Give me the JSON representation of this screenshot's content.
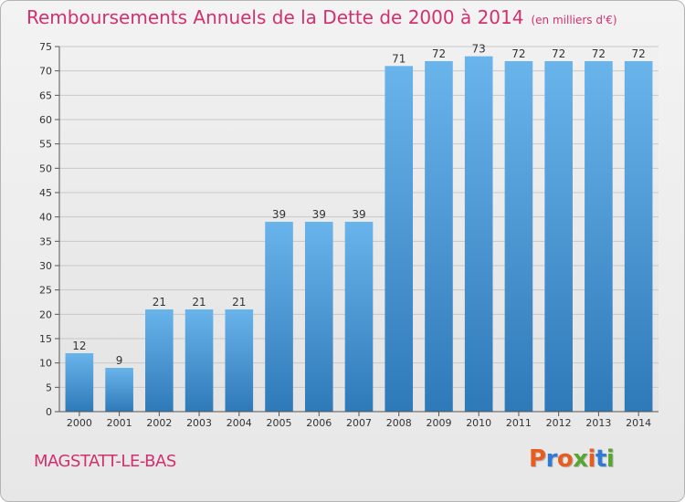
{
  "header": {
    "title": "Remboursements Annuels de la Dette de 2000 à 2014",
    "unit": "(en milliers d'€)"
  },
  "footer": {
    "commune": "MAGSTATT-LE-BAS",
    "logo_text": "Proxiti",
    "logo_colors": [
      "#e85d1f",
      "#2f7ad6",
      "#e85d1f",
      "#57a632",
      "#e85d1f",
      "#2f7ad6",
      "#57a632"
    ]
  },
  "colors": {
    "title": "#d2306e",
    "bar_top": "#6ab4ec",
    "bar_bottom": "#2e79b8",
    "grid": "#c8c8c8"
  },
  "chart_data": {
    "type": "bar",
    "title": "Remboursements Annuels de la Dette de 2000 à 2014",
    "subtitle": "(en milliers d'€)",
    "categories": [
      "2000",
      "2001",
      "2002",
      "2003",
      "2004",
      "2005",
      "2006",
      "2007",
      "2008",
      "2009",
      "2010",
      "2011",
      "2012",
      "2013",
      "2014"
    ],
    "values": [
      12,
      9,
      21,
      21,
      21,
      39,
      39,
      39,
      71,
      72,
      73,
      72,
      72,
      72,
      72
    ],
    "ylim": [
      0,
      75
    ],
    "yticks": [
      0,
      5,
      10,
      15,
      20,
      25,
      30,
      35,
      40,
      45,
      50,
      55,
      60,
      65,
      70,
      75
    ],
    "grid": true,
    "data_labels": true
  }
}
